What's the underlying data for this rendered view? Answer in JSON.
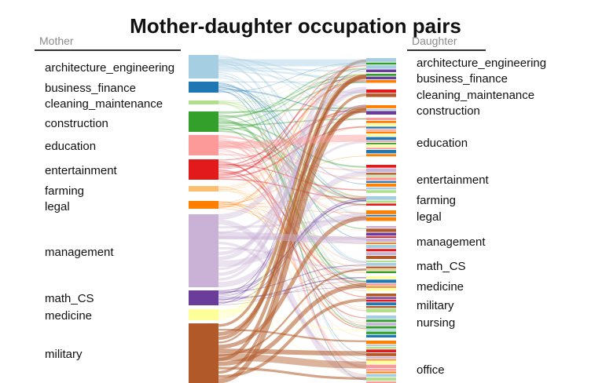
{
  "title": "Mother-daughter occupation pairs",
  "mother_header": "Mother",
  "daughter_header": "Daughter",
  "mother_nodes": [
    {
      "name": "architecture_engineering",
      "color": "#a6cee3"
    },
    {
      "name": "business_finance",
      "color": "#1f78b4"
    },
    {
      "name": "cleaning_maintenance",
      "color": "#b2df8a"
    },
    {
      "name": "construction",
      "color": "#33a02c"
    },
    {
      "name": "education",
      "color": "#fb9a99"
    },
    {
      "name": "entertainment",
      "color": "#e31a1c"
    },
    {
      "name": "farming",
      "color": "#fdbf6f"
    },
    {
      "name": "legal",
      "color": "#ff7f00"
    },
    {
      "name": "management",
      "color": "#cab2d6"
    },
    {
      "name": "math_CS",
      "color": "#6a3d9a"
    },
    {
      "name": "medicine",
      "color": "#ffff99"
    },
    {
      "name": "military",
      "color": "#b15928"
    }
  ],
  "daughter_nodes": [
    {
      "name": "architecture_engineering"
    },
    {
      "name": "business_finance"
    },
    {
      "name": "cleaning_maintenance"
    },
    {
      "name": "construction"
    },
    {
      "name": "education"
    },
    {
      "name": "entertainment"
    },
    {
      "name": "farming"
    },
    {
      "name": "legal"
    },
    {
      "name": "management"
    },
    {
      "name": "math_CS"
    },
    {
      "name": "medicine"
    },
    {
      "name": "military"
    },
    {
      "name": "nursing"
    },
    {
      "name": "office"
    }
  ]
}
